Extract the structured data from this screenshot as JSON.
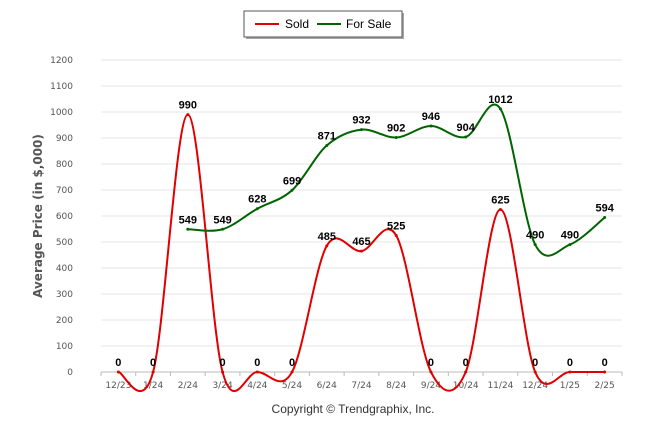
{
  "chart_data": {
    "type": "line",
    "title": "",
    "xlabel": "",
    "ylabel": "Average Price (in $,000)",
    "ylim": [
      0,
      1200
    ],
    "yticks": [
      0,
      100,
      200,
      300,
      400,
      500,
      600,
      700,
      800,
      900,
      1000,
      1100,
      1200
    ],
    "grid": true,
    "smooth": true,
    "legend_position": "top-center",
    "categories": [
      "12/23",
      "1/24",
      "2/24",
      "3/24",
      "4/24",
      "5/24",
      "6/24",
      "7/24",
      "8/24",
      "9/24",
      "10/24",
      "11/24",
      "12/24",
      "1/25",
      "2/25"
    ],
    "series": [
      {
        "name": "Sold",
        "color": "#e00000",
        "values": [
          0,
          0,
          990,
          0,
          0,
          0,
          485,
          465,
          525,
          0,
          0,
          625,
          0,
          0,
          0
        ]
      },
      {
        "name": "For Sale",
        "color": "#006400",
        "values": [
          null,
          null,
          549,
          549,
          628,
          699,
          871,
          932,
          902,
          946,
          904,
          1012,
          490,
          490,
          594
        ]
      }
    ]
  },
  "footer": {
    "copyright": "Copyright © Trendgraphix, Inc."
  }
}
